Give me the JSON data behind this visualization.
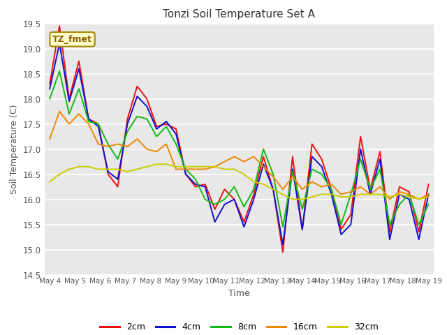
{
  "title": "Tonzi Soil Temperature Set A",
  "xlabel": "Time",
  "ylabel": "Soil Temperature (C)",
  "ylim": [
    14.5,
    19.5
  ],
  "annotation_text": "TZ_fmet",
  "legend_labels": [
    "2cm",
    "4cm",
    "8cm",
    "16cm",
    "32cm"
  ],
  "legend_colors": [
    "#ee1111",
    "#1111cc",
    "#11bb11",
    "#ee8800",
    "#cccc00"
  ],
  "x_tick_labels": [
    "May 4",
    "May 5",
    "May 6",
    "May 7",
    "May 8",
    "May 9",
    "May 10",
    "May 11",
    "May 12",
    "May 13",
    "May 14",
    "May 15",
    "May 16",
    "May 17",
    "May 18",
    "May 19"
  ],
  "data_2cm": [
    18.3,
    19.45,
    18.0,
    18.75,
    17.6,
    17.5,
    16.5,
    16.25,
    17.6,
    18.25,
    18.0,
    17.45,
    17.5,
    17.4,
    16.5,
    16.25,
    16.3,
    15.8,
    16.2,
    16.0,
    15.55,
    16.1,
    16.85,
    16.2,
    14.95,
    16.85,
    15.4,
    17.1,
    16.8,
    16.2,
    15.4,
    15.7,
    17.25,
    16.2,
    16.95,
    15.35,
    16.25,
    16.15,
    15.35,
    16.3
  ],
  "data_4cm": [
    18.2,
    19.1,
    17.95,
    18.6,
    17.6,
    17.45,
    16.55,
    16.4,
    17.5,
    18.05,
    17.85,
    17.4,
    17.55,
    17.3,
    16.5,
    16.3,
    16.25,
    15.55,
    15.9,
    16.0,
    15.45,
    16.0,
    16.7,
    16.2,
    15.1,
    16.6,
    15.4,
    16.85,
    16.65,
    16.1,
    15.3,
    15.5,
    17.0,
    16.1,
    16.8,
    15.2,
    16.1,
    16.0,
    15.2,
    16.1
  ],
  "data_8cm": [
    18.0,
    18.55,
    17.7,
    18.2,
    17.55,
    17.5,
    17.1,
    16.8,
    17.35,
    17.65,
    17.6,
    17.25,
    17.45,
    17.1,
    16.6,
    16.4,
    16.0,
    15.9,
    16.0,
    16.25,
    15.85,
    16.2,
    17.0,
    16.5,
    15.45,
    16.55,
    15.8,
    16.6,
    16.5,
    16.2,
    15.5,
    16.1,
    16.8,
    16.2,
    16.6,
    15.5,
    15.9,
    16.1,
    15.5,
    15.9
  ],
  "data_16cm": [
    17.2,
    17.75,
    17.5,
    17.7,
    17.5,
    17.1,
    17.05,
    17.1,
    17.05,
    17.2,
    17.0,
    16.95,
    17.1,
    16.6,
    16.6,
    16.6,
    16.6,
    16.65,
    16.75,
    16.85,
    16.75,
    16.85,
    16.65,
    16.45,
    16.2,
    16.45,
    16.2,
    16.35,
    16.25,
    16.3,
    16.1,
    16.15,
    16.25,
    16.1,
    16.25,
    16.0,
    16.15,
    16.1,
    16.0,
    16.1
  ],
  "data_32cm": [
    16.35,
    16.5,
    16.6,
    16.65,
    16.65,
    16.6,
    16.6,
    16.6,
    16.55,
    16.6,
    16.65,
    16.7,
    16.7,
    16.65,
    16.65,
    16.65,
    16.65,
    16.65,
    16.6,
    16.6,
    16.5,
    16.35,
    16.3,
    16.2,
    16.1,
    16.0,
    16.0,
    16.05,
    16.1,
    16.1,
    16.05,
    16.05,
    16.1,
    16.1,
    16.1,
    16.05,
    16.1,
    16.05,
    16.0,
    16.05
  ]
}
